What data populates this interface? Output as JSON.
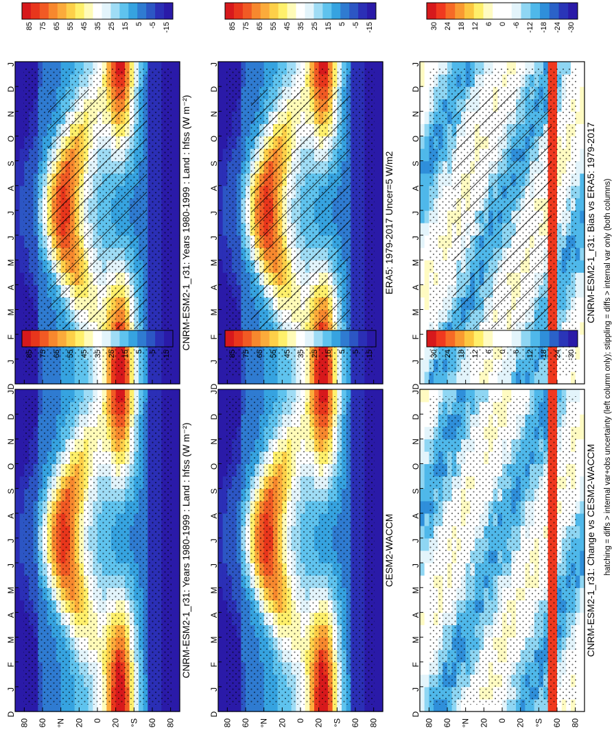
{
  "figure": {
    "footnote": "hatching = diffs > internal var+obs uncertainty (left column only); stippling = diffs > internal var only (both columns)"
  },
  "colors": {
    "full_scale": [
      "#d7191c",
      "#e8361c",
      "#f15a24",
      "#f7882e",
      "#fbab3b",
      "#fdd049",
      "#fff06b",
      "#fffbb8",
      "#ffffff",
      "#e3f4fb",
      "#9fdcf5",
      "#5fc3ee",
      "#36a3e0",
      "#2f7bd1",
      "#2c56c4",
      "#2b2fb6",
      "#2a1aa8"
    ],
    "diff_scale": [
      "#d7191c",
      "#f0391f",
      "#f66a26",
      "#f99a31",
      "#fcc740",
      "#ffef6a",
      "#fffbc2",
      "#ffffff",
      "#ffffff",
      "#e3f4fb",
      "#8fd6f3",
      "#4fb8ea",
      "#2f8fda",
      "#2b62c8",
      "#2a35b8",
      "#2a1aa8"
    ],
    "hatch": "#000000",
    "stipple": "#000000"
  },
  "chart_data": [
    {
      "type": "heatmap",
      "title": "CNRM-ESM2-1_r31: Years 1980-1999 : Land : hfss (W m⁻²)",
      "variable": "hfss",
      "units": "W m-2",
      "x": [
        "J",
        "F",
        "M",
        "A",
        "M",
        "J",
        "J",
        "A",
        "S",
        "O",
        "N",
        "D"
      ],
      "y_ticks": [
        "80",
        "60",
        "°N",
        "20",
        "0",
        "20",
        "°S",
        "60",
        "80"
      ],
      "axis_end_labels": [
        "D",
        "J"
      ],
      "colorbar_ticks": [
        "85",
        "75",
        "65",
        "55",
        "45",
        "35",
        "25",
        "15",
        "5",
        "-5",
        "-15"
      ],
      "colorbar_range": [
        -20,
        90
      ],
      "hatching": true,
      "stippling": true
    },
    {
      "type": "heatmap",
      "title": "CNRM-ESM2-1_r31: Years 1980-1999 : Land : hfss (W m⁻²)",
      "variable": "hfss",
      "units": "W m-2",
      "x": [
        "J",
        "F",
        "M",
        "A",
        "M",
        "J",
        "J",
        "A",
        "S",
        "O",
        "N",
        "D"
      ],
      "y_ticks": [
        "80",
        "60",
        "°N",
        "20",
        "0",
        "20",
        "°S",
        "60",
        "80"
      ],
      "axis_end_labels": [
        "D",
        "J"
      ],
      "colorbar_ticks": [
        "85",
        "75",
        "65",
        "55",
        "45",
        "35",
        "25",
        "15",
        "5",
        "-5",
        "-15"
      ],
      "colorbar_range": [
        -20,
        90
      ],
      "hatching": false,
      "stippling": true
    },
    {
      "type": "heatmap",
      "title": "ERA5: 1979-2017 Uncer=5 W/m2",
      "x": [
        "J",
        "F",
        "M",
        "A",
        "M",
        "J",
        "J",
        "A",
        "S",
        "O",
        "N",
        "D"
      ],
      "y_ticks": [
        "80",
        "60",
        "°N",
        "20",
        "0",
        "20",
        "°S",
        "60",
        "80"
      ],
      "axis_end_labels": [
        "D",
        "J"
      ],
      "colorbar_ticks": [
        "85",
        "75",
        "65",
        "55",
        "45",
        "35",
        "25",
        "15",
        "5",
        "-5",
        "-15"
      ],
      "colorbar_range": [
        -20,
        90
      ],
      "hatching": true,
      "stippling": true
    },
    {
      "type": "heatmap",
      "title": "CESM2-WACCM",
      "x": [
        "J",
        "F",
        "M",
        "A",
        "M",
        "J",
        "J",
        "A",
        "S",
        "O",
        "N",
        "D"
      ],
      "y_ticks": [
        "80",
        "60",
        "°N",
        "20",
        "0",
        "20",
        "°S",
        "60",
        "80"
      ],
      "axis_end_labels": [
        "D",
        "J"
      ],
      "colorbar_ticks": [
        "85",
        "75",
        "65",
        "55",
        "45",
        "35",
        "25",
        "15",
        "5",
        "-5",
        "-15"
      ],
      "colorbar_range": [
        -20,
        90
      ],
      "hatching": false,
      "stippling": true
    },
    {
      "type": "heatmap",
      "title": "CNRM-ESM2-1_r31: Bias vs ERA5: 1979-2017",
      "x": [
        "J",
        "F",
        "M",
        "A",
        "M",
        "J",
        "J",
        "A",
        "S",
        "O",
        "N",
        "D"
      ],
      "y_ticks": [
        "80",
        "60",
        "°N",
        "20",
        "0",
        "20",
        "°S",
        "60",
        "80"
      ],
      "axis_end_labels": [
        "D",
        "J"
      ],
      "colorbar_ticks": [
        "30",
        "24",
        "18",
        "12",
        "6",
        "0",
        "-6",
        "-12",
        "-18",
        "-24",
        "-30"
      ],
      "colorbar_range": [
        -33,
        33
      ],
      "hatching": true,
      "stippling": true
    },
    {
      "type": "heatmap",
      "title": "CNRM-ESM2-1_r31: Change vs CESM2-WACCM",
      "x": [
        "J",
        "F",
        "M",
        "A",
        "M",
        "J",
        "J",
        "A",
        "S",
        "O",
        "N",
        "D"
      ],
      "y_ticks": [
        "80",
        "60",
        "°N",
        "20",
        "0",
        "20",
        "°S",
        "60",
        "80"
      ],
      "axis_end_labels": [
        "D",
        "J"
      ],
      "colorbar_ticks": [
        "30",
        "24",
        "18",
        "12",
        "6",
        "0",
        "-6",
        "-12",
        "-18",
        "-24",
        "-30"
      ],
      "colorbar_range": [
        -33,
        33
      ],
      "hatching": false,
      "stippling": true
    }
  ]
}
